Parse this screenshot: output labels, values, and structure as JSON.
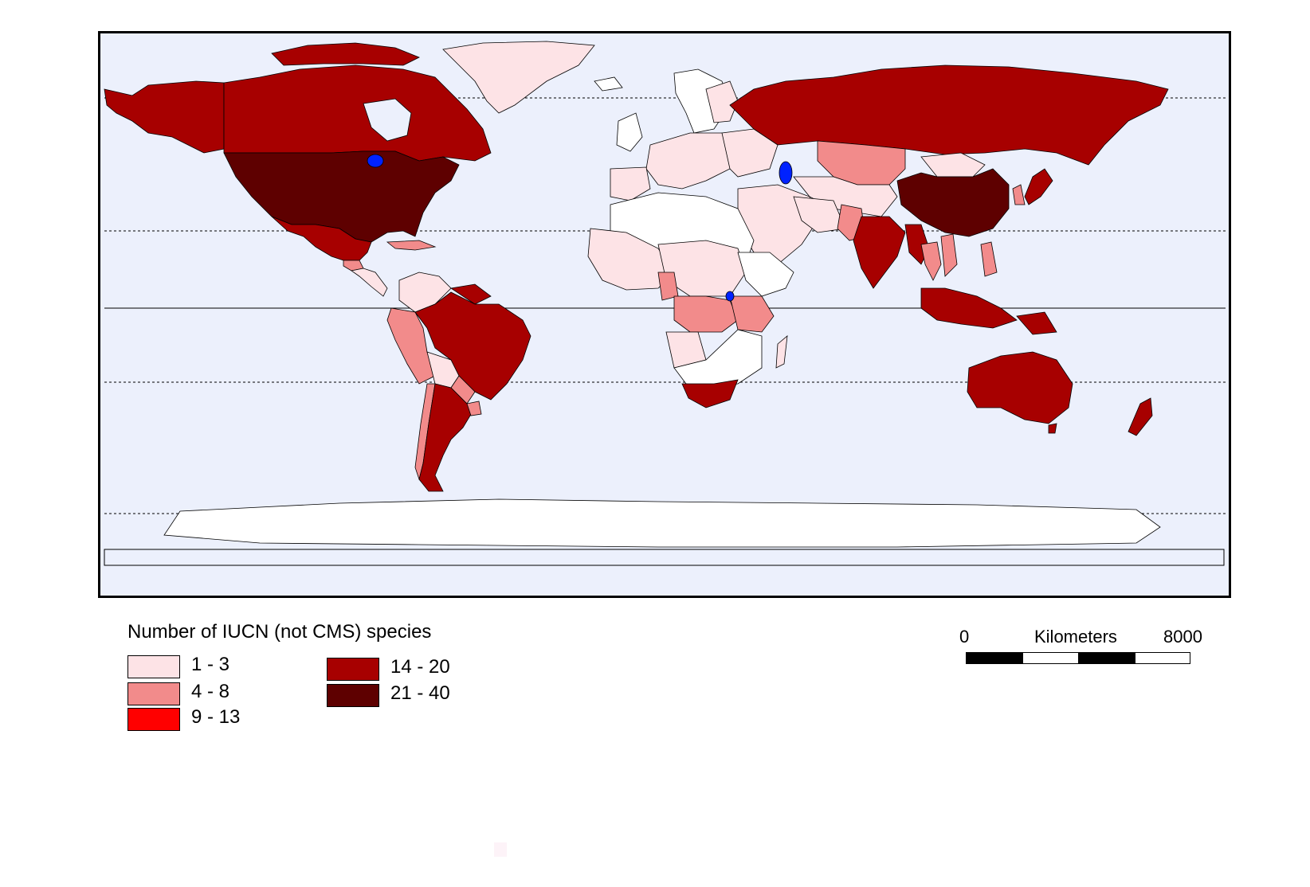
{
  "legend": {
    "title": "Number of IUCN (not CMS) species",
    "classes": [
      {
        "label": "1 - 3",
        "color": "#fde3e6"
      },
      {
        "label": "4 - 8",
        "color": "#f28b8b"
      },
      {
        "label": "9 - 13",
        "color": "#ff0000"
      },
      {
        "label": "14 - 20",
        "color": "#a70000"
      },
      {
        "label": "21 - 40",
        "color": "#5e0000"
      }
    ]
  },
  "scalebar": {
    "start_label": "0",
    "unit_label": "Kilometers",
    "end_label": "8000"
  },
  "colors": {
    "ocean": "#ecf0fc",
    "no_data_land": "#ffffff",
    "lakes": "#0022ff"
  }
}
